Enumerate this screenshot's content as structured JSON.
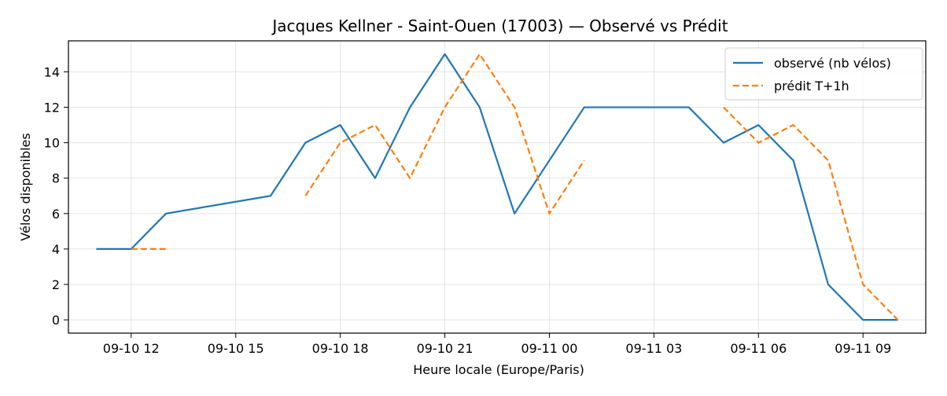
{
  "chart_data": {
    "type": "line",
    "title": "Jacques Kellner - Saint-Ouen (17003) — Observé vs Prédit",
    "xlabel": "Heure locale (Europe/Paris)",
    "ylabel": "Vélos disponibles",
    "x_unit": "hour",
    "x_ticks": [
      {
        "label": "09-10 12",
        "x": "2024-09-10 12:00"
      },
      {
        "label": "09-10 15",
        "x": "2024-09-10 15:00"
      },
      {
        "label": "09-10 18",
        "x": "2024-09-10 18:00"
      },
      {
        "label": "09-10 21",
        "x": "2024-09-10 21:00"
      },
      {
        "label": "09-11 00",
        "x": "2024-09-11 00:00"
      },
      {
        "label": "09-11 03",
        "x": "2024-09-11 03:00"
      },
      {
        "label": "09-11 06",
        "x": "2024-09-11 06:00"
      },
      {
        "label": "09-11 09",
        "x": "2024-09-11 09:00"
      }
    ],
    "xlim": [
      "2024-09-10 10:12",
      "2024-09-11 10:48"
    ],
    "ylim": [
      -0.75,
      15.75
    ],
    "y_ticks": [
      0,
      2,
      4,
      6,
      8,
      10,
      12,
      14
    ],
    "grid": true,
    "legend_position": "top-right",
    "series": [
      {
        "name": "observé (nb vélos)",
        "color": "#1f77b4",
        "style": "solid",
        "points": [
          {
            "x": "2024-09-10 11:00",
            "y": 4
          },
          {
            "x": "2024-09-10 12:00",
            "y": 4
          },
          {
            "x": "2024-09-10 13:00",
            "y": 6
          },
          {
            "x": "2024-09-10 16:00",
            "y": 7
          },
          {
            "x": "2024-09-10 17:00",
            "y": 10
          },
          {
            "x": "2024-09-10 18:00",
            "y": 11
          },
          {
            "x": "2024-09-10 19:00",
            "y": 8
          },
          {
            "x": "2024-09-10 20:00",
            "y": 12
          },
          {
            "x": "2024-09-10 21:00",
            "y": 15
          },
          {
            "x": "2024-09-10 22:00",
            "y": 12
          },
          {
            "x": "2024-09-10 23:00",
            "y": 6
          },
          {
            "x": "2024-09-11 00:00",
            "y": 9
          },
          {
            "x": "2024-09-11 01:00",
            "y": 12
          },
          {
            "x": "2024-09-11 04:00",
            "y": 12
          },
          {
            "x": "2024-09-11 05:00",
            "y": 10
          },
          {
            "x": "2024-09-11 06:00",
            "y": 11
          },
          {
            "x": "2024-09-11 07:00",
            "y": 9
          },
          {
            "x": "2024-09-11 08:00",
            "y": 2
          },
          {
            "x": "2024-09-11 09:00",
            "y": 0
          },
          {
            "x": "2024-09-11 10:00",
            "y": 0
          }
        ]
      },
      {
        "name": "prédit T+1h",
        "color": "#ff7f0e",
        "style": "dashed",
        "segments": [
          [
            {
              "x": "2024-09-10 12:00",
              "y": 4
            },
            {
              "x": "2024-09-10 13:00",
              "y": 4
            }
          ],
          [
            {
              "x": "2024-09-10 17:00",
              "y": 7
            },
            {
              "x": "2024-09-10 18:00",
              "y": 10
            },
            {
              "x": "2024-09-10 19:00",
              "y": 11
            },
            {
              "x": "2024-09-10 20:00",
              "y": 8
            },
            {
              "x": "2024-09-10 21:00",
              "y": 12
            },
            {
              "x": "2024-09-10 22:00",
              "y": 15
            },
            {
              "x": "2024-09-10 23:00",
              "y": 12
            },
            {
              "x": "2024-09-11 00:00",
              "y": 6
            },
            {
              "x": "2024-09-11 01:00",
              "y": 9
            }
          ],
          [
            {
              "x": "2024-09-11 05:00",
              "y": 12
            },
            {
              "x": "2024-09-11 06:00",
              "y": 10
            },
            {
              "x": "2024-09-11 07:00",
              "y": 11
            },
            {
              "x": "2024-09-11 08:00",
              "y": 9
            },
            {
              "x": "2024-09-11 09:00",
              "y": 2
            },
            {
              "x": "2024-09-11 10:00",
              "y": 0
            }
          ]
        ]
      }
    ]
  }
}
